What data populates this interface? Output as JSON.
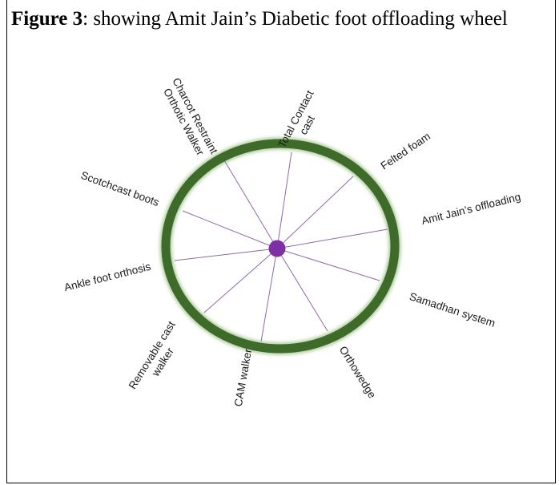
{
  "caption": {
    "label": "Figure 3",
    "text": ": showing Amit Jain’s Diabetic foot offloading wheel"
  },
  "wheel": {
    "rim_color": "#3f6b2a",
    "hub_color": "#7d2fa3",
    "spoke_color": "#8e6aa8",
    "items": [
      {
        "lines": [
          "Total Contact",
          "cast"
        ]
      },
      {
        "lines": [
          "Felted foam"
        ]
      },
      {
        "lines": [
          "Amit Jain’s offloading"
        ]
      },
      {
        "lines": [
          "Samadhan system"
        ]
      },
      {
        "lines": [
          "Orthowedge"
        ]
      },
      {
        "lines": [
          "CAM walker"
        ]
      },
      {
        "lines": [
          "Removable cast",
          "walker"
        ]
      },
      {
        "lines": [
          "Ankle foot orthosis"
        ]
      },
      {
        "lines": [
          "Scotchcast boots"
        ]
      },
      {
        "lines": [
          "Charcot Restraint",
          "Orthotic Walker"
        ]
      }
    ]
  }
}
